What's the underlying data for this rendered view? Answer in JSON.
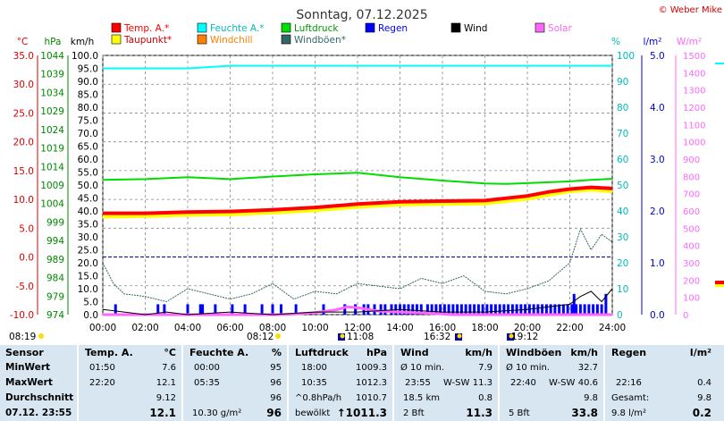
{
  "chart_data": {
    "type": "line",
    "title": "Sonntag, 07.12.2025",
    "copyright": "© Weber Mike",
    "x_axis": {
      "ticks": [
        "00:00",
        "02:00",
        "04:00",
        "06:00",
        "08:00",
        "10:00",
        "12:00",
        "14:00",
        "16:00",
        "18:00",
        "20:00",
        "22:00",
        "24:00"
      ],
      "range_hours": [
        0,
        24
      ]
    },
    "axes": {
      "temp_c": {
        "label": "°C",
        "ticks": [
          "35.0",
          "30.0",
          "25.0",
          "20.0",
          "15.0",
          "10.0",
          "5.0",
          "0.0",
          "-5.0",
          "-10.0"
        ],
        "range": [
          -10,
          35
        ]
      },
      "pressure_hpa": {
        "label": "hPa",
        "ticks": [
          "1044",
          "1039",
          "1034",
          "1029",
          "1024",
          "1019",
          "1014",
          "1009",
          "1004",
          "999",
          "994",
          "989",
          "984",
          "979",
          "974"
        ],
        "range": [
          974,
          1044
        ]
      },
      "wind_kmh": {
        "label": "km/h",
        "ticks": [
          "100.0",
          "95.0",
          "90.0",
          "85.0",
          "80.0",
          "75.0",
          "70.0",
          "65.0",
          "60.0",
          "55.0",
          "50.0",
          "45.0",
          "40.0",
          "35.0",
          "30.0",
          "25.0",
          "20.0",
          "15.0",
          "10.0",
          "5.0",
          "0.0"
        ],
        "range": [
          0,
          100
        ]
      },
      "humidity_pct": {
        "label": "%",
        "ticks": [
          "100",
          "90",
          "80",
          "70",
          "60",
          "50",
          "40",
          "30",
          "20",
          "10",
          "0"
        ],
        "range": [
          0,
          100
        ]
      },
      "rain_lm2": {
        "label": "l/m²",
        "ticks": [
          "5.0",
          "4.0",
          "3.0",
          "2.0",
          "1.0",
          "0.0"
        ],
        "range": [
          0,
          5
        ]
      },
      "solar_wm2": {
        "label": "W/m²",
        "ticks": [
          "1500",
          "1400",
          "1300",
          "1200",
          "1100",
          "1000",
          "900",
          "800",
          "700",
          "600",
          "500",
          "400",
          "300",
          "200",
          "100",
          "0"
        ],
        "range": [
          0,
          1500
        ]
      }
    },
    "legend": [
      {
        "name": "Temp. A.*",
        "color": "#ff0000"
      },
      {
        "name": "Feuchte A.*",
        "color": "#00ffff"
      },
      {
        "name": "Luftdruck",
        "color": "#00dd00"
      },
      {
        "name": "Regen",
        "color": "#0000ff"
      },
      {
        "name": "Wind",
        "color": "#000000"
      },
      {
        "name": "Solar",
        "color": "#ff66ff"
      },
      {
        "name": "Taupunkt*",
        "color": "#ffff00"
      },
      {
        "name": "Windchill",
        "color": "#ff8000"
      },
      {
        "name": "Windböen*",
        "color": "#336666"
      }
    ],
    "series": [
      {
        "name": "Temp. A.*",
        "axis": "temp_c",
        "x": [
          0,
          2,
          4,
          6,
          8,
          10,
          12,
          14,
          16,
          18,
          20,
          21,
          22,
          23,
          24
        ],
        "values": [
          7.6,
          7.6,
          7.8,
          7.9,
          8.2,
          8.6,
          9.2,
          9.6,
          9.7,
          9.8,
          10.6,
          11.3,
          11.8,
          12.1,
          11.9
        ]
      },
      {
        "name": "Taupunkt*",
        "axis": "temp_c",
        "x": [
          0,
          2,
          4,
          6,
          8,
          10,
          12,
          14,
          16,
          18,
          20,
          21,
          22,
          23,
          24
        ],
        "values": [
          7.0,
          7.1,
          7.3,
          7.4,
          7.7,
          8.1,
          8.7,
          9.1,
          9.2,
          9.3,
          10.1,
          10.8,
          11.4,
          11.7,
          11.4
        ]
      },
      {
        "name": "Feuchte A.*",
        "axis": "humidity_pct",
        "x": [
          0,
          2,
          4,
          6,
          8,
          10,
          12,
          14,
          16,
          18,
          20,
          22,
          24
        ],
        "values": [
          95,
          95,
          95,
          96,
          96,
          96,
          96,
          96,
          96,
          96,
          96,
          96,
          96
        ]
      },
      {
        "name": "Luftdruck",
        "axis": "pressure_hpa",
        "x": [
          0,
          2,
          4,
          6,
          8,
          10,
          12,
          14,
          16,
          18,
          19,
          20,
          22,
          23,
          24
        ],
        "values": [
          1010.4,
          1010.6,
          1011.1,
          1010.6,
          1011.3,
          1011.9,
          1012.3,
          1011.1,
          1010.2,
          1009.4,
          1009.3,
          1009.5,
          1010.0,
          1010.4,
          1010.7
        ]
      },
      {
        "name": "Windböen*",
        "axis": "wind_kmh",
        "x": [
          0,
          0.5,
          1,
          2,
          3,
          4,
          5,
          6,
          7,
          8,
          9,
          10,
          11,
          12,
          13,
          14,
          15,
          16,
          17,
          18,
          19,
          20,
          21,
          22,
          22.5,
          23,
          23.5,
          24
        ],
        "values": [
          20,
          12,
          8,
          7,
          5,
          10,
          8,
          6,
          8,
          12,
          6,
          9,
          8,
          12,
          11,
          10,
          14,
          12,
          15,
          9,
          8,
          10,
          13,
          20,
          33,
          25,
          31,
          28
        ]
      },
      {
        "name": "Wind",
        "axis": "wind_kmh",
        "x": [
          0,
          1,
          2,
          3,
          4,
          6,
          8,
          10,
          12,
          14,
          16,
          18,
          20,
          21,
          22,
          22.5,
          23,
          23.5,
          24
        ],
        "values": [
          2,
          1,
          0,
          1,
          0,
          1,
          0,
          1,
          1,
          2,
          1,
          1,
          2,
          3,
          4,
          7,
          9,
          5,
          10
        ]
      },
      {
        "name": "Solar",
        "axis": "solar_wm2",
        "x": [
          0,
          8.2,
          9,
          10,
          11,
          11.5,
          12,
          13,
          14,
          15,
          16,
          16.5,
          24
        ],
        "values": [
          0,
          0,
          3,
          12,
          28,
          45,
          40,
          20,
          15,
          10,
          4,
          0,
          0
        ]
      }
    ],
    "rain_bars_hours": [
      0.6,
      2.6,
      2.9,
      4.0,
      4.6,
      4.7,
      5.3,
      6.1,
      6.7,
      7.5,
      8.0,
      8.4,
      9.1,
      10.4,
      11.4,
      11.9,
      12.3,
      12.5,
      12.8,
      13.1,
      13.3,
      13.6,
      13.8,
      14.0,
      14.2,
      14.4,
      14.6,
      14.8,
      15.0,
      15.3,
      15.5,
      15.7,
      15.9,
      16.1,
      16.3,
      16.5,
      16.7,
      16.9,
      17.1,
      17.3,
      17.5,
      17.7,
      17.9,
      18.1,
      18.3,
      18.5,
      18.7,
      18.9,
      19.1,
      19.3,
      19.5,
      19.7,
      19.9,
      20.1,
      20.3,
      20.5,
      20.7,
      20.9,
      21.1,
      21.3,
      21.5,
      21.7,
      21.9,
      22.1,
      22.3,
      22.5,
      22.7,
      22.9,
      23.1,
      23.3,
      23.5
    ],
    "rain_bar_value_lm2": 0.2,
    "rain_tall_bars_hours": [
      22.2,
      23.7
    ],
    "rain_tall_value_lm2": 0.4,
    "sun_markers": [
      "08:19",
      "08:12",
      "11:08",
      "16:32",
      "19:12"
    ]
  },
  "panel": {
    "sensor": {
      "header": "Sensor",
      "rows": [
        "MinWert",
        "MaxWert",
        "Durchschnitt",
        "07.12. 23:55"
      ]
    },
    "temp": {
      "header": "Temp. A.",
      "unit": "°C",
      "min_time": "01:50",
      "min": "7.6",
      "max_time": "22:20",
      "max": "12.1",
      "avg": "9.12",
      "now": "12.1"
    },
    "feuchte": {
      "header": "Feuchte A.",
      "unit": "%",
      "min_time": "00:00",
      "min": "95",
      "max_time": "05:35",
      "max": "96",
      "avg": "96",
      "abs": "10.30 g/m²",
      "now": "96"
    },
    "luftdruck": {
      "header": "Luftdruck",
      "unit": "hPa",
      "min_time": "18:00",
      "min": "1009.3",
      "max_time": "10:35",
      "max": "1012.3",
      "trend_label": "^0.8hPa/h",
      "avg": "1010.7",
      "state": "bewölkt",
      "now": "↑1011.3"
    },
    "wind": {
      "header": "Wind",
      "unit": "km/h",
      "r1_label": "Ø 10 min.",
      "r1_val": "7.9",
      "r2_time": "23:55",
      "r2_dir": "W-SW",
      "r2_val": "11.3",
      "r3_label": "18.5 km",
      "r3_val": "0.8",
      "bft": "2 Bft",
      "now": "11.3"
    },
    "windboeen": {
      "header": "Windböen",
      "unit": "km/h",
      "r1_label": "Ø 10 min.",
      "r1_val": "32.7",
      "r2_time": "22:40",
      "r2_dir": "W-SW",
      "r2_val": "40.6",
      "r3_val": "9.8",
      "bft": "5 Bft",
      "now": "33.8"
    },
    "regen": {
      "header": "Regen",
      "unit": "l/m²",
      "r2_time": "22:16",
      "r2_val": "0.4",
      "r3_label": "Gesamt:",
      "r3_val": "9.8",
      "now_label": "9.8 l/m²",
      "now": "0.2"
    }
  }
}
